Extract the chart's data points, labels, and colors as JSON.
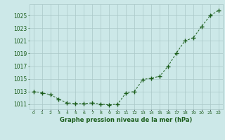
{
  "x": [
    0,
    1,
    2,
    3,
    4,
    5,
    6,
    7,
    8,
    9,
    10,
    11,
    12,
    13,
    14,
    15,
    16,
    17,
    18,
    19,
    20,
    21,
    22
  ],
  "y": [
    1013.0,
    1012.8,
    1012.5,
    1011.8,
    1011.2,
    1011.1,
    1011.1,
    1011.2,
    1011.0,
    1010.9,
    1011.0,
    1012.8,
    1013.0,
    1014.9,
    1015.1,
    1015.4,
    1017.0,
    1019.1,
    1021.0,
    1021.5,
    1023.3,
    1025.0,
    1025.8
  ],
  "line_color": "#1a5c1a",
  "marker_color": "#1a5c1a",
  "bg_color": "#cce8e8",
  "grid_color": "#aac8c8",
  "xlabel": "Graphe pression niveau de la mer (hPa)",
  "xlabel_color": "#1a5c1a",
  "tick_color": "#1a5c1a",
  "ytick_start": 1011,
  "ytick_end": 1025,
  "ytick_step": 2,
  "xtick_labels": [
    "0",
    "1",
    "2",
    "3",
    "4",
    "5",
    "6",
    "7",
    "8",
    "9",
    "10",
    "11",
    "12",
    "13",
    "14",
    "15",
    "16",
    "17",
    "18",
    "19",
    "20",
    "21",
    "22"
  ],
  "ylim": [
    1010.2,
    1026.8
  ],
  "xlim": [
    -0.5,
    22.5
  ]
}
